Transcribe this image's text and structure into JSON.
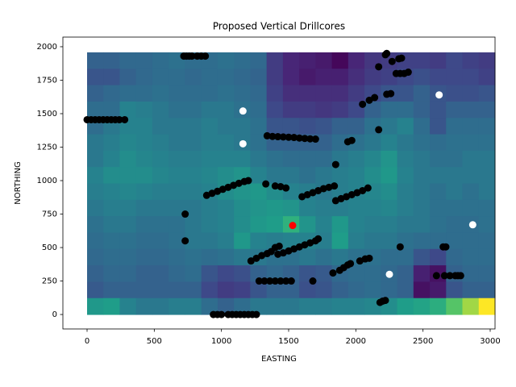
{
  "chart_data": {
    "type": "heatmap",
    "title": "Proposed Vertical Drillcores",
    "xlabel": "EASTING",
    "ylabel": "NORTHING",
    "xlim": [
      -180,
      3036
    ],
    "ylim": [
      -108,
      2072
    ],
    "xticks": [
      0,
      500,
      1000,
      1500,
      2000,
      2500,
      3000
    ],
    "yticks": [
      0,
      250,
      500,
      750,
      1000,
      1250,
      1500,
      1750,
      2000
    ],
    "colormap": "viridis",
    "zlim": [
      0,
      1
    ],
    "extent": [
      0,
      3036,
      0,
      1958
    ],
    "z": [
      [
        0.35,
        0.35,
        0.38,
        0.38,
        0.4,
        0.42,
        0.4,
        0.4,
        0.42,
        0.4,
        0.38,
        0.2,
        0.12,
        0.1,
        0.08,
        0.02,
        0.12,
        0.18,
        0.2,
        0.22,
        0.22,
        0.2,
        0.25,
        0.22,
        0.2
      ],
      [
        0.3,
        0.3,
        0.35,
        0.38,
        0.4,
        0.4,
        0.38,
        0.4,
        0.4,
        0.38,
        0.36,
        0.2,
        0.12,
        0.08,
        0.1,
        0.1,
        0.15,
        0.2,
        0.22,
        0.25,
        0.28,
        0.25,
        0.25,
        0.25,
        0.22
      ],
      [
        0.35,
        0.38,
        0.4,
        0.4,
        0.42,
        0.4,
        0.4,
        0.4,
        0.42,
        0.4,
        0.38,
        0.22,
        0.15,
        0.15,
        0.15,
        0.15,
        0.2,
        0.25,
        0.3,
        0.3,
        0.35,
        0.3,
        0.28,
        0.28,
        0.3
      ],
      [
        0.4,
        0.4,
        0.5,
        0.48,
        0.45,
        0.42,
        0.42,
        0.45,
        0.45,
        0.42,
        0.4,
        0.25,
        0.2,
        0.2,
        0.18,
        0.2,
        0.25,
        0.35,
        0.4,
        0.4,
        0.35,
        0.3,
        0.35,
        0.35,
        0.35
      ],
      [
        0.4,
        0.45,
        0.5,
        0.5,
        0.45,
        0.45,
        0.45,
        0.48,
        0.45,
        0.45,
        0.42,
        0.3,
        0.3,
        0.28,
        0.3,
        0.35,
        0.35,
        0.42,
        0.45,
        0.5,
        0.4,
        0.3,
        0.4,
        0.4,
        0.4
      ],
      [
        0.45,
        0.48,
        0.52,
        0.5,
        0.48,
        0.45,
        0.45,
        0.48,
        0.48,
        0.45,
        0.42,
        0.35,
        0.35,
        0.35,
        0.35,
        0.4,
        0.42,
        0.45,
        0.5,
        0.45,
        0.42,
        0.4,
        0.42,
        0.42,
        0.42
      ],
      [
        0.45,
        0.5,
        0.55,
        0.52,
        0.5,
        0.48,
        0.48,
        0.5,
        0.5,
        0.5,
        0.45,
        0.42,
        0.4,
        0.4,
        0.4,
        0.45,
        0.48,
        0.52,
        0.58,
        0.48,
        0.45,
        0.42,
        0.42,
        0.45,
        0.45
      ],
      [
        0.5,
        0.55,
        0.55,
        0.55,
        0.52,
        0.5,
        0.5,
        0.52,
        0.55,
        0.58,
        0.5,
        0.45,
        0.45,
        0.42,
        0.45,
        0.48,
        0.5,
        0.55,
        0.6,
        0.5,
        0.45,
        0.45,
        0.45,
        0.45,
        0.45
      ],
      [
        0.48,
        0.5,
        0.52,
        0.5,
        0.48,
        0.48,
        0.48,
        0.5,
        0.55,
        0.58,
        0.6,
        0.55,
        0.5,
        0.48,
        0.45,
        0.48,
        0.5,
        0.52,
        0.55,
        0.48,
        0.45,
        0.42,
        0.45,
        0.42,
        0.45
      ],
      [
        0.45,
        0.48,
        0.48,
        0.45,
        0.45,
        0.45,
        0.45,
        0.48,
        0.5,
        0.55,
        0.58,
        0.6,
        0.58,
        0.5,
        0.48,
        0.48,
        0.5,
        0.5,
        0.52,
        0.48,
        0.45,
        0.42,
        0.42,
        0.42,
        0.42
      ],
      [
        0.42,
        0.45,
        0.45,
        0.42,
        0.42,
        0.42,
        0.45,
        0.48,
        0.5,
        0.55,
        0.6,
        0.62,
        0.72,
        0.58,
        0.5,
        0.6,
        0.5,
        0.48,
        0.48,
        0.45,
        0.45,
        0.42,
        0.4,
        0.4,
        0.42
      ],
      [
        0.4,
        0.42,
        0.42,
        0.4,
        0.4,
        0.42,
        0.45,
        0.45,
        0.48,
        0.6,
        0.5,
        0.48,
        0.5,
        0.5,
        0.48,
        0.62,
        0.48,
        0.45,
        0.45,
        0.42,
        0.4,
        0.4,
        0.4,
        0.4,
        0.4
      ],
      [
        0.38,
        0.4,
        0.4,
        0.38,
        0.38,
        0.4,
        0.42,
        0.4,
        0.42,
        0.45,
        0.45,
        0.42,
        0.42,
        0.45,
        0.42,
        0.45,
        0.42,
        0.42,
        0.4,
        0.4,
        0.3,
        0.25,
        0.38,
        0.4,
        0.4
      ],
      [
        0.35,
        0.38,
        0.38,
        0.35,
        0.35,
        0.38,
        0.4,
        0.3,
        0.25,
        0.28,
        0.35,
        0.38,
        0.35,
        0.3,
        0.32,
        0.38,
        0.4,
        0.4,
        0.38,
        0.35,
        0.1,
        0.05,
        0.35,
        0.38,
        0.38
      ],
      [
        0.32,
        0.35,
        0.35,
        0.35,
        0.35,
        0.35,
        0.35,
        0.25,
        0.2,
        0.22,
        0.3,
        0.35,
        0.35,
        0.28,
        0.3,
        0.35,
        0.38,
        0.4,
        0.38,
        0.35,
        0.05,
        0.08,
        0.3,
        0.35,
        0.35
      ],
      [
        0.6,
        0.62,
        0.5,
        0.45,
        0.45,
        0.48,
        0.48,
        0.4,
        0.35,
        0.4,
        0.45,
        0.45,
        0.45,
        0.48,
        0.48,
        0.5,
        0.5,
        0.52,
        0.55,
        0.62,
        0.65,
        0.7,
        0.82,
        0.92,
        1.0
      ]
    ],
    "series": [
      {
        "color": "#000000",
        "x": [
          0,
          30,
          60,
          90,
          120,
          150,
          180,
          210,
          240,
          280,
          720,
          740,
          760,
          780,
          820,
          850,
          880,
          940,
          970,
          1000,
          1050,
          1080,
          1110,
          1140,
          1170,
          1200,
          1230,
          1260,
          730,
          730,
          890,
          930,
          970,
          1010,
          1050,
          1090,
          1130,
          1170,
          1200,
          1340,
          1380,
          1420,
          1460,
          1500,
          1540,
          1580,
          1620,
          1660,
          1700,
          1330,
          1400,
          1440,
          1480,
          1600,
          1640,
          1680,
          1720,
          1760,
          1800,
          1840,
          1850,
          1890,
          1930,
          1970,
          2010,
          2050,
          2090,
          1850,
          1940,
          1970,
          2050,
          2100,
          2140,
          2230,
          2260,
          2170,
          2220,
          2230,
          2270,
          2320,
          2340,
          2300,
          2330,
          2360,
          2390,
          2170,
          1220,
          1260,
          1300,
          1340,
          1370,
          1400,
          1430,
          1420,
          1460,
          1500,
          1540,
          1580,
          1620,
          1660,
          1700,
          1720,
          1280,
          1320,
          1360,
          1400,
          1440,
          1480,
          1520,
          1680,
          1830,
          1880,
          1910,
          1940,
          1960,
          2030,
          2070,
          2100,
          2180,
          2200,
          2220,
          2330,
          2650,
          2670,
          2600,
          2660,
          2700,
          2740,
          2760,
          2780
        ],
        "y": [
          1455,
          1455,
          1455,
          1455,
          1455,
          1455,
          1455,
          1455,
          1455,
          1455,
          1930,
          1930,
          1930,
          1930,
          1930,
          1930,
          1930,
          0,
          0,
          0,
          0,
          0,
          0,
          0,
          0,
          0,
          0,
          0,
          750,
          550,
          890,
          905,
          920,
          935,
          950,
          965,
          980,
          993,
          1000,
          1335,
          1330,
          1328,
          1326,
          1324,
          1322,
          1318,
          1315,
          1312,
          1310,
          975,
          960,
          955,
          945,
          880,
          895,
          910,
          925,
          940,
          950,
          960,
          850,
          865,
          880,
          895,
          910,
          925,
          945,
          1120,
          1290,
          1300,
          1570,
          1600,
          1620,
          1645,
          1650,
          1850,
          1940,
          1950,
          1890,
          1910,
          1915,
          1800,
          1800,
          1800,
          1810,
          1380,
          400,
          420,
          440,
          455,
          470,
          500,
          510,
          450,
          460,
          475,
          490,
          505,
          520,
          535,
          550,
          565,
          250,
          250,
          250,
          250,
          250,
          250,
          250,
          250,
          310,
          330,
          350,
          370,
          380,
          400,
          415,
          420,
          90,
          100,
          105,
          505,
          505,
          505,
          290,
          290,
          290,
          290,
          290,
          290
        ]
      },
      {
        "color": "#ffffff",
        "x": [
          1160,
          1160,
          2620,
          2870,
          2250
        ],
        "y": [
          1520,
          1275,
          1640,
          670,
          300
        ]
      },
      {
        "color": "#ff0000",
        "x": [
          1530
        ],
        "y": [
          665
        ]
      }
    ]
  }
}
